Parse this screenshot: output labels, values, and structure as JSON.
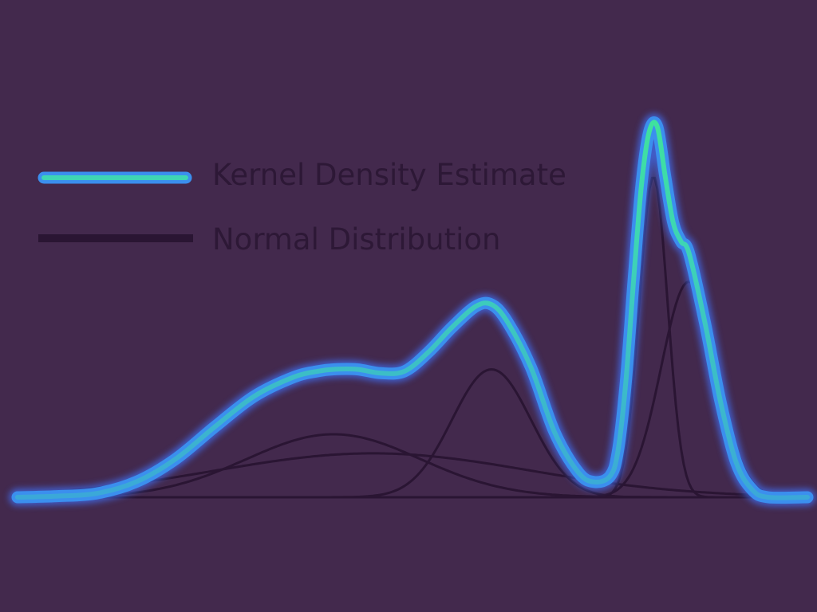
{
  "colors": {
    "background": "#43294d",
    "kde_glow": "#3f6df0",
    "kde_mid": "#3b8fee",
    "kde_core": "#3ed5b4",
    "kde_peak": "#3fe29c",
    "normal_line": "#2a1533",
    "legend_text": "#2d1836"
  },
  "chart_data": {
    "type": "line",
    "title": "",
    "xlabel": "",
    "ylabel": "",
    "xlim": [
      0,
      1
    ],
    "ylim": [
      0,
      1
    ],
    "grid": false,
    "legend": {
      "placement": "top-left",
      "entries": [
        "Kernel Density Estimate",
        "Normal Distribution"
      ]
    },
    "components": [
      {
        "mean": 0.4,
        "std": 0.11,
        "height": 0.165
      },
      {
        "mean": 0.45,
        "std": 0.2,
        "height": 0.115
      },
      {
        "mean": 0.6,
        "std": 0.05,
        "height": 0.335
      },
      {
        "mean": 0.805,
        "std": 0.018,
        "height": 0.84
      },
      {
        "mean": 0.85,
        "std": 0.035,
        "height": 0.565
      }
    ],
    "kde_x": [
      0.0,
      0.05,
      0.1,
      0.15,
      0.2,
      0.25,
      0.3,
      0.35,
      0.38,
      0.4,
      0.43,
      0.46,
      0.49,
      0.52,
      0.55,
      0.58,
      0.6,
      0.62,
      0.65,
      0.68,
      0.71,
      0.73,
      0.75,
      0.76,
      0.77,
      0.78,
      0.79,
      0.8,
      0.81,
      0.82,
      0.83,
      0.84,
      0.85,
      0.87,
      0.89,
      0.91,
      0.93,
      0.95,
      1.0
    ],
    "kde_y": [
      0.0,
      0.003,
      0.01,
      0.04,
      0.1,
      0.185,
      0.265,
      0.315,
      0.33,
      0.335,
      0.335,
      0.325,
      0.33,
      0.38,
      0.445,
      0.5,
      0.505,
      0.46,
      0.34,
      0.17,
      0.065,
      0.04,
      0.055,
      0.12,
      0.3,
      0.57,
      0.82,
      0.96,
      0.97,
      0.84,
      0.72,
      0.67,
      0.64,
      0.46,
      0.25,
      0.09,
      0.02,
      0.0,
      0.0
    ]
  }
}
